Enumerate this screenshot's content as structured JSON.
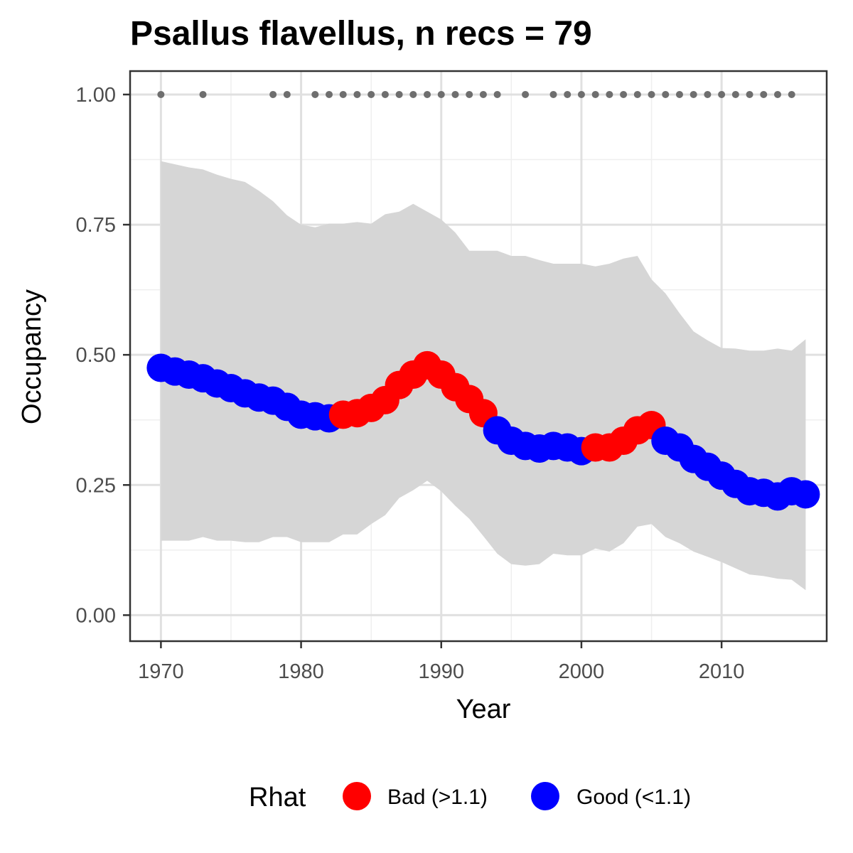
{
  "chart_data": {
    "type": "line",
    "title": "Psallus flavellus, n recs = 79",
    "xlabel": "Year",
    "ylabel": "Occupancy",
    "xlim": [
      1967.8,
      2017.5
    ],
    "ylim": [
      -0.05,
      1.045
    ],
    "x_ticks": [
      1970,
      1980,
      1990,
      2000,
      2010
    ],
    "x_tick_labels": [
      "1970",
      "1980",
      "1990",
      "2000",
      "2010"
    ],
    "y_ticks": [
      0,
      0.25,
      0.5,
      0.75,
      1.0
    ],
    "y_tick_labels": [
      "0.00",
      "0.25",
      "0.50",
      "0.75",
      "1.00"
    ],
    "grid": true,
    "legend": {
      "title": "Rhat",
      "position": "bottom",
      "entries": [
        {
          "label": "Bad (>1.1)",
          "color": "#FF0000"
        },
        {
          "label": "Good (<1.1)",
          "color": "#0000FF"
        }
      ]
    },
    "colors": {
      "bad": "#FF0000",
      "good": "#0000FF",
      "ribbon": "#D6D6D6",
      "record_points": "#6E6E6E",
      "panel_border": "#333333",
      "grid_major": "#E0E0E0",
      "grid_minor": "#EFEFEF"
    },
    "series": [
      {
        "x": [
          1970,
          1971,
          1972,
          1973,
          1974,
          1975,
          1976,
          1977,
          1978,
          1979,
          1980,
          1981,
          1982,
          1983,
          1984,
          1985,
          1986,
          1987,
          1988,
          1989,
          1990,
          1991,
          1992,
          1993,
          1994,
          1995,
          1996,
          1997,
          1998,
          1999,
          2000,
          2001,
          2002,
          2003,
          2004,
          2005,
          2006,
          2007,
          2008,
          2009,
          2010,
          2011,
          2012,
          2013,
          2014,
          2015,
          2016
        ],
        "values": [
          0.475,
          0.468,
          0.462,
          0.455,
          0.445,
          0.436,
          0.426,
          0.418,
          0.412,
          0.4,
          0.385,
          0.382,
          0.378,
          0.385,
          0.388,
          0.398,
          0.413,
          0.442,
          0.462,
          0.48,
          0.462,
          0.438,
          0.415,
          0.388,
          0.355,
          0.335,
          0.325,
          0.32,
          0.325,
          0.322,
          0.315,
          0.322,
          0.322,
          0.335,
          0.355,
          0.365,
          0.335,
          0.322,
          0.3,
          0.285,
          0.268,
          0.252,
          0.238,
          0.235,
          0.228,
          0.238,
          0.232
        ],
        "rhat": [
          "good",
          "good",
          "good",
          "good",
          "good",
          "good",
          "good",
          "good",
          "good",
          "good",
          "good",
          "good",
          "good",
          "bad",
          "bad",
          "bad",
          "bad",
          "bad",
          "bad",
          "bad",
          "bad",
          "bad",
          "bad",
          "bad",
          "good",
          "good",
          "good",
          "good",
          "good",
          "good",
          "good",
          "bad",
          "bad",
          "bad",
          "bad",
          "bad",
          "good",
          "good",
          "good",
          "good",
          "good",
          "good",
          "good",
          "good",
          "good",
          "good",
          "good"
        ]
      }
    ],
    "ribbon": {
      "x": [
        1970,
        1971,
        1972,
        1973,
        1974,
        1975,
        1976,
        1977,
        1978,
        1979,
        1980,
        1981,
        1982,
        1983,
        1984,
        1985,
        1986,
        1987,
        1988,
        1989,
        1990,
        1991,
        1992,
        1993,
        1994,
        1995,
        1996,
        1997,
        1998,
        1999,
        2000,
        2001,
        2002,
        2003,
        2004,
        2005,
        2006,
        2007,
        2008,
        2009,
        2010,
        2011,
        2012,
        2013,
        2014,
        2015,
        2016
      ],
      "lower": [
        0.143,
        0.143,
        0.143,
        0.15,
        0.143,
        0.143,
        0.14,
        0.14,
        0.15,
        0.15,
        0.14,
        0.14,
        0.14,
        0.155,
        0.155,
        0.175,
        0.192,
        0.225,
        0.24,
        0.258,
        0.238,
        0.21,
        0.185,
        0.152,
        0.118,
        0.098,
        0.095,
        0.098,
        0.118,
        0.115,
        0.115,
        0.128,
        0.122,
        0.138,
        0.17,
        0.175,
        0.15,
        0.138,
        0.122,
        0.112,
        0.102,
        0.09,
        0.078,
        0.075,
        0.07,
        0.068,
        0.048
      ],
      "upper": [
        0.872,
        0.866,
        0.86,
        0.856,
        0.846,
        0.838,
        0.832,
        0.815,
        0.795,
        0.768,
        0.75,
        0.745,
        0.752,
        0.752,
        0.755,
        0.752,
        0.77,
        0.775,
        0.79,
        0.775,
        0.76,
        0.735,
        0.7,
        0.7,
        0.7,
        0.69,
        0.69,
        0.682,
        0.675,
        0.675,
        0.675,
        0.67,
        0.675,
        0.685,
        0.69,
        0.645,
        0.618,
        0.58,
        0.545,
        0.528,
        0.513,
        0.512,
        0.508,
        0.508,
        0.512,
        0.508,
        0.53
      ]
    },
    "record_years": [
      1970,
      1973,
      1978,
      1979,
      1981,
      1982,
      1983,
      1984,
      1985,
      1986,
      1987,
      1988,
      1989,
      1990,
      1991,
      1992,
      1993,
      1994,
      1996,
      1998,
      1999,
      2000,
      2001,
      2002,
      2003,
      2004,
      2005,
      2006,
      2007,
      2008,
      2009,
      2010,
      2011,
      2012,
      2013,
      2014,
      2015
    ],
    "record_value": 1.0
  }
}
